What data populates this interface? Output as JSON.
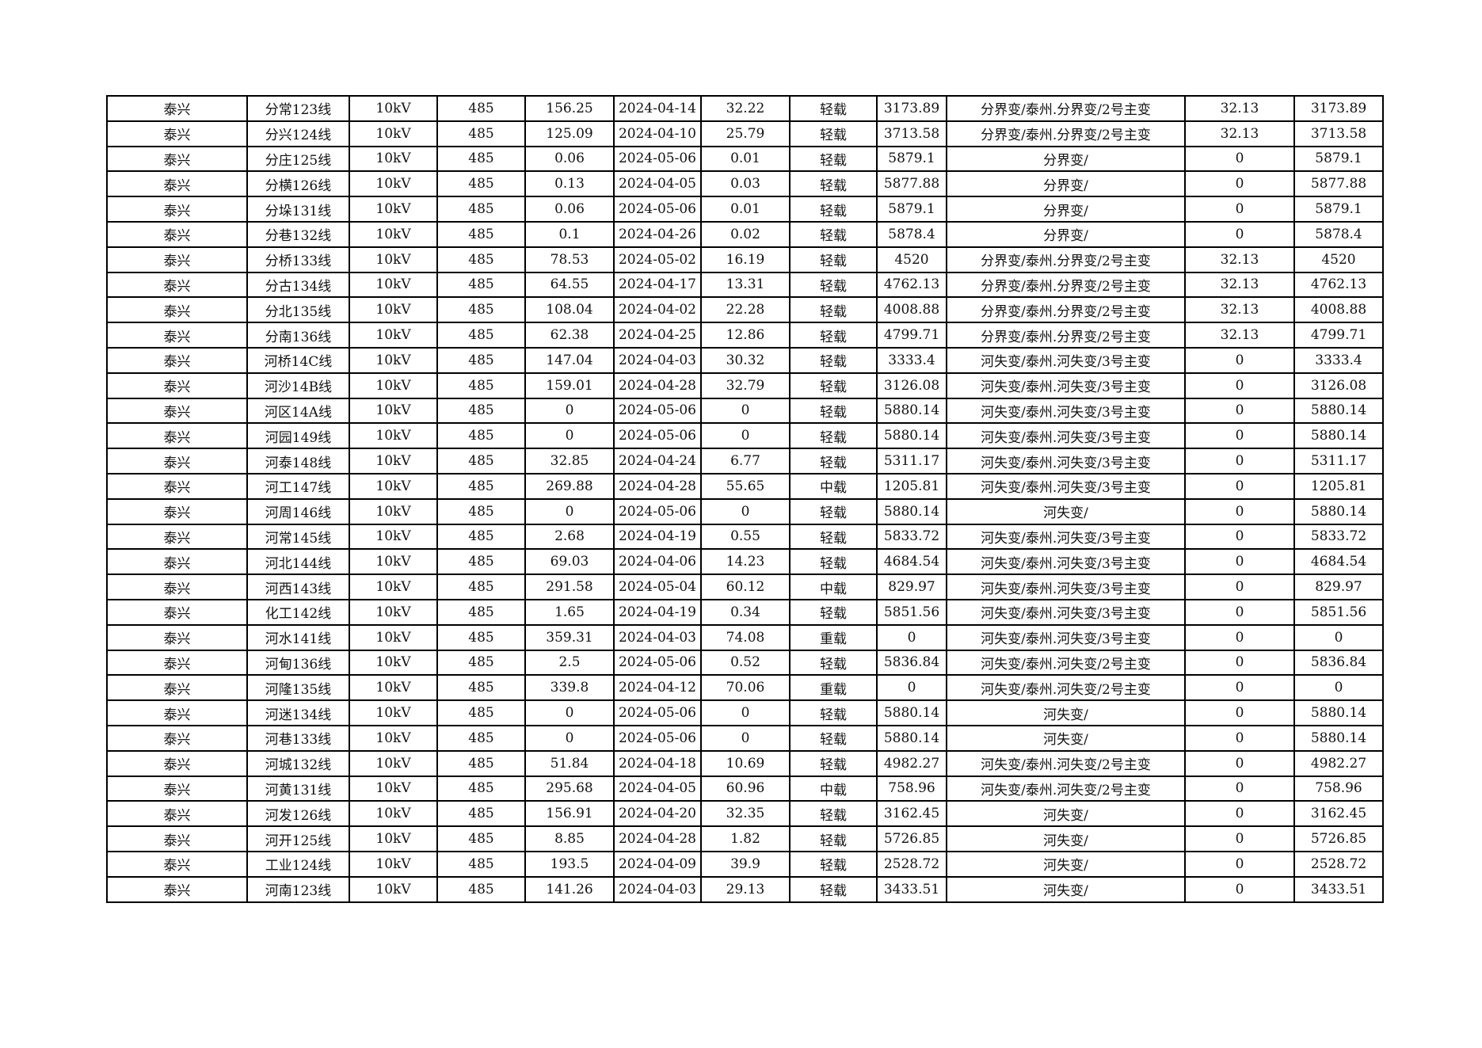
{
  "rows": [
    [
      "泰兴",
      "分常123线",
      "10kV",
      "485",
      "156.25",
      "2024-04-14",
      "32.22",
      "轻载",
      "3173.89",
      "分界变/泰州.分界变/2号主变",
      "32.13",
      "3173.89"
    ],
    [
      "泰兴",
      "分兴124线",
      "10kV",
      "485",
      "125.09",
      "2024-04-10",
      "25.79",
      "轻载",
      "3713.58",
      "分界变/泰州.分界变/2号主变",
      "32.13",
      "3713.58"
    ],
    [
      "泰兴",
      "分庄125线",
      "10kV",
      "485",
      "0.06",
      "2024-05-06",
      "0.01",
      "轻载",
      "5879.1",
      "分界变/",
      "0",
      "5879.1"
    ],
    [
      "泰兴",
      "分横126线",
      "10kV",
      "485",
      "0.13",
      "2024-04-05",
      "0.03",
      "轻载",
      "5877.88",
      "分界变/",
      "0",
      "5877.88"
    ],
    [
      "泰兴",
      "分垛131线",
      "10kV",
      "485",
      "0.06",
      "2024-05-06",
      "0.01",
      "轻载",
      "5879.1",
      "分界变/",
      "0",
      "5879.1"
    ],
    [
      "泰兴",
      "分巷132线",
      "10kV",
      "485",
      "0.1",
      "2024-04-26",
      "0.02",
      "轻载",
      "5878.4",
      "分界变/",
      "0",
      "5878.4"
    ],
    [
      "泰兴",
      "分桥133线",
      "10kV",
      "485",
      "78.53",
      "2024-05-02",
      "16.19",
      "轻载",
      "4520",
      "分界变/泰州.分界变/2号主变",
      "32.13",
      "4520"
    ],
    [
      "泰兴",
      "分古134线",
      "10kV",
      "485",
      "64.55",
      "2024-04-17",
      "13.31",
      "轻载",
      "4762.13",
      "分界变/泰州.分界变/2号主变",
      "32.13",
      "4762.13"
    ],
    [
      "泰兴",
      "分北135线",
      "10kV",
      "485",
      "108.04",
      "2024-04-02",
      "22.28",
      "轻载",
      "4008.88",
      "分界变/泰州.分界变/2号主变",
      "32.13",
      "4008.88"
    ],
    [
      "泰兴",
      "分南136线",
      "10kV",
      "485",
      "62.38",
      "2024-04-25",
      "12.86",
      "轻载",
      "4799.71",
      "分界变/泰州.分界变/2号主变",
      "32.13",
      "4799.71"
    ],
    [
      "泰兴",
      "河桥14C线",
      "10kV",
      "485",
      "147.04",
      "2024-04-03",
      "30.32",
      "轻载",
      "3333.4",
      "河失变/泰州.河失变/3号主变",
      "0",
      "3333.4"
    ],
    [
      "泰兴",
      "河沙14B线",
      "10kV",
      "485",
      "159.01",
      "2024-04-28",
      "32.79",
      "轻载",
      "3126.08",
      "河失变/泰州.河失变/3号主变",
      "0",
      "3126.08"
    ],
    [
      "泰兴",
      "河区14A线",
      "10kV",
      "485",
      "0",
      "2024-05-06",
      "0",
      "轻载",
      "5880.14",
      "河失变/泰州.河失变/3号主变",
      "0",
      "5880.14"
    ],
    [
      "泰兴",
      "河园149线",
      "10kV",
      "485",
      "0",
      "2024-05-06",
      "0",
      "轻载",
      "5880.14",
      "河失变/泰州.河失变/3号主变",
      "0",
      "5880.14"
    ],
    [
      "泰兴",
      "河泰148线",
      "10kV",
      "485",
      "32.85",
      "2024-04-24",
      "6.77",
      "轻载",
      "5311.17",
      "河失变/泰州.河失变/3号主变",
      "0",
      "5311.17"
    ],
    [
      "泰兴",
      "河工147线",
      "10kV",
      "485",
      "269.88",
      "2024-04-28",
      "55.65",
      "中载",
      "1205.81",
      "河失变/泰州.河失变/3号主变",
      "0",
      "1205.81"
    ],
    [
      "泰兴",
      "河周146线",
      "10kV",
      "485",
      "0",
      "2024-05-06",
      "0",
      "轻载",
      "5880.14",
      "河失变/",
      "0",
      "5880.14"
    ],
    [
      "泰兴",
      "河常145线",
      "10kV",
      "485",
      "2.68",
      "2024-04-19",
      "0.55",
      "轻载",
      "5833.72",
      "河失变/泰州.河失变/3号主变",
      "0",
      "5833.72"
    ],
    [
      "泰兴",
      "河北144线",
      "10kV",
      "485",
      "69.03",
      "2024-04-06",
      "14.23",
      "轻载",
      "4684.54",
      "河失变/泰州.河失变/3号主变",
      "0",
      "4684.54"
    ],
    [
      "泰兴",
      "河西143线",
      "10kV",
      "485",
      "291.58",
      "2024-05-04",
      "60.12",
      "中载",
      "829.97",
      "河失变/泰州.河失变/3号主变",
      "0",
      "829.97"
    ],
    [
      "泰兴",
      "化工142线",
      "10kV",
      "485",
      "1.65",
      "2024-04-19",
      "0.34",
      "轻载",
      "5851.56",
      "河失变/泰州.河失变/3号主变",
      "0",
      "5851.56"
    ],
    [
      "泰兴",
      "河水141线",
      "10kV",
      "485",
      "359.31",
      "2024-04-03",
      "74.08",
      "重载",
      "0",
      "河失变/泰州.河失变/3号主变",
      "0",
      "0"
    ],
    [
      "泰兴",
      "河甸136线",
      "10kV",
      "485",
      "2.5",
      "2024-05-06",
      "0.52",
      "轻载",
      "5836.84",
      "河失变/泰州.河失变/2号主变",
      "0",
      "5836.84"
    ],
    [
      "泰兴",
      "河隆135线",
      "10kV",
      "485",
      "339.8",
      "2024-04-12",
      "70.06",
      "重载",
      "0",
      "河失变/泰州.河失变/2号主变",
      "0",
      "0"
    ],
    [
      "泰兴",
      "河迷134线",
      "10kV",
      "485",
      "0",
      "2024-05-06",
      "0",
      "轻载",
      "5880.14",
      "河失变/",
      "0",
      "5880.14"
    ],
    [
      "泰兴",
      "河巷133线",
      "10kV",
      "485",
      "0",
      "2024-05-06",
      "0",
      "轻载",
      "5880.14",
      "河失变/",
      "0",
      "5880.14"
    ],
    [
      "泰兴",
      "河城132线",
      "10kV",
      "485",
      "51.84",
      "2024-04-18",
      "10.69",
      "轻载",
      "4982.27",
      "河失变/泰州.河失变/2号主变",
      "0",
      "4982.27"
    ],
    [
      "泰兴",
      "河黄131线",
      "10kV",
      "485",
      "295.68",
      "2024-04-05",
      "60.96",
      "中载",
      "758.96",
      "河失变/泰州.河失变/2号主变",
      "0",
      "758.96"
    ],
    [
      "泰兴",
      "河发126线",
      "10kV",
      "485",
      "156.91",
      "2024-04-20",
      "32.35",
      "轻载",
      "3162.45",
      "河失变/",
      "0",
      "3162.45"
    ],
    [
      "泰兴",
      "河开125线",
      "10kV",
      "485",
      "8.85",
      "2024-04-28",
      "1.82",
      "轻载",
      "5726.85",
      "河失变/",
      "0",
      "5726.85"
    ],
    [
      "泰兴",
      "工业124线",
      "10kV",
      "485",
      "193.5",
      "2024-04-09",
      "39.9",
      "轻载",
      "2528.72",
      "河失变/",
      "0",
      "2528.72"
    ],
    [
      "泰兴",
      "河南123线",
      "10kV",
      "485",
      "141.26",
      "2024-04-03",
      "29.13",
      "轻载",
      "3433.51",
      "河失变/",
      "0",
      "3433.51"
    ]
  ]
}
